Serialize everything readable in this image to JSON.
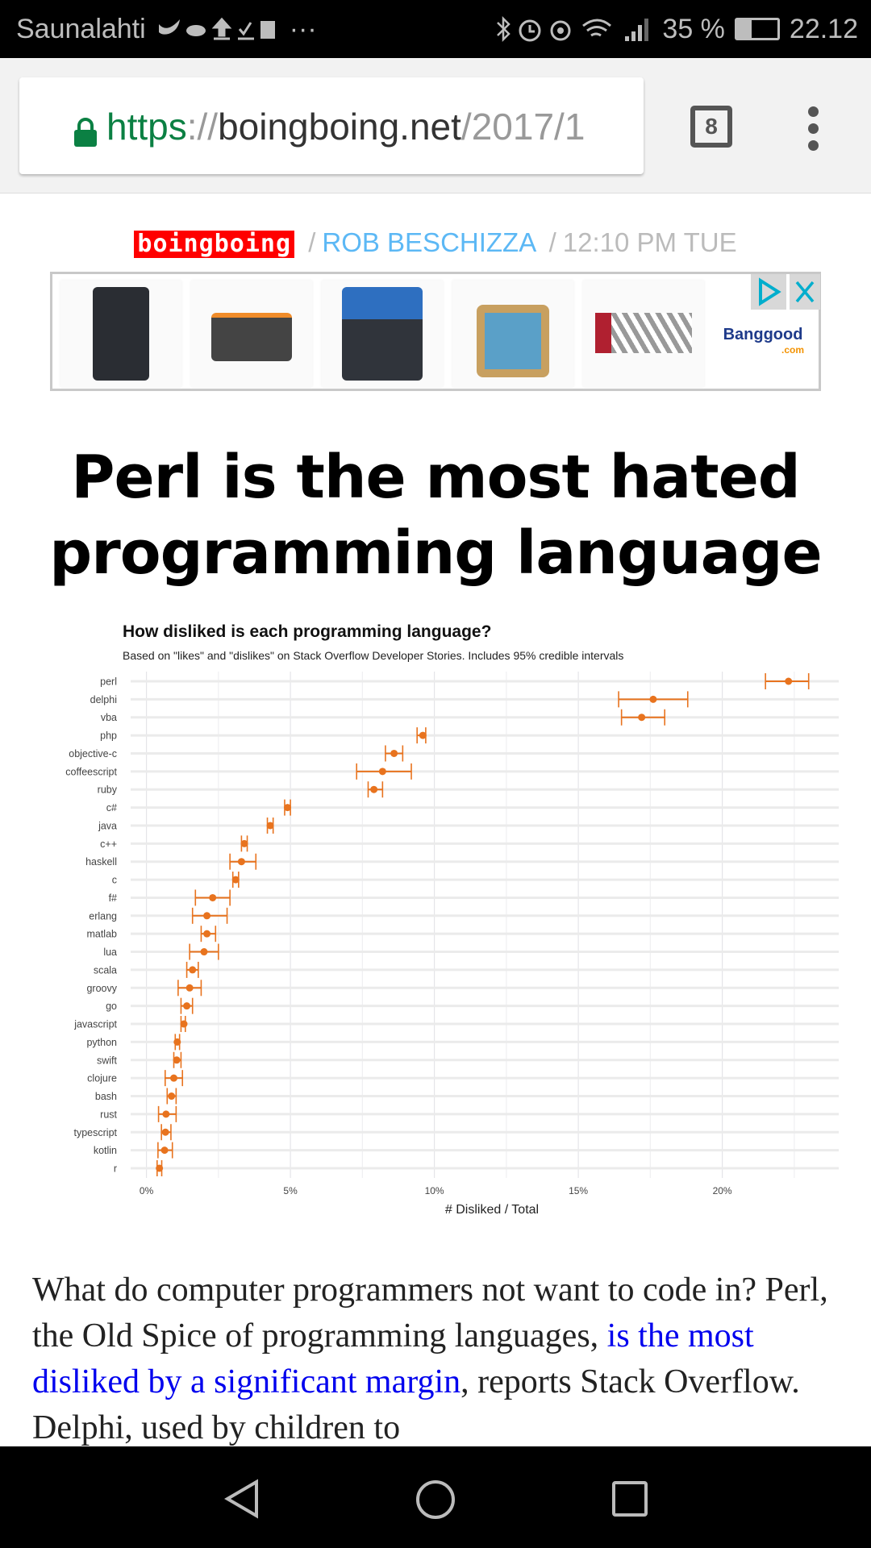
{
  "status_bar": {
    "carrier": "Saunalahti",
    "battery": "35 %",
    "time": "22.12",
    "more": "···"
  },
  "browser": {
    "url_scheme": "https",
    "url_sep": "://",
    "url_host": "boingboing.net",
    "url_path": "/2017/1",
    "tab_count": "8"
  },
  "byline": {
    "logo": "boingboing",
    "sep": "/",
    "author": "ROB BESCHIZZA",
    "time": "12:10 PM TUE"
  },
  "ad": {
    "brand": "Banggood",
    "brand_suffix": ".com"
  },
  "article": {
    "headline_1": "Perl is the most hated",
    "headline_2": "programming language",
    "p_before": "What do computer programmers not want to code in? Perl, the Old Spice of programming languages, ",
    "p_link": "is the most disliked by a significant margin",
    "p_after": ", reports Stack Overflow. Delphi, used by children to"
  },
  "chart_data": {
    "type": "scatter",
    "title": "How disliked is each programming language?",
    "subtitle": "Based on \"likes\" and \"dislikes\" on Stack Overflow Developer Stories. Includes 95% credible intervals",
    "xlabel": "# Disliked / Total",
    "ylabel": "",
    "xlim": [
      0,
      24.2
    ],
    "xticks": [
      0,
      5,
      10,
      15,
      20
    ],
    "xtick_labels": [
      "0%",
      "5%",
      "10%",
      "15%",
      "20%"
    ],
    "grid": true,
    "color": "#e8731e",
    "categories": [
      "perl",
      "delphi",
      "vba",
      "php",
      "objective-c",
      "coffeescript",
      "ruby",
      "c#",
      "java",
      "c++",
      "haskell",
      "c",
      "f#",
      "erlang",
      "matlab",
      "lua",
      "scala",
      "groovy",
      "go",
      "javascript",
      "python",
      "swift",
      "clojure",
      "bash",
      "rust",
      "typescript",
      "kotlin",
      "r"
    ],
    "values": [
      22.3,
      17.6,
      17.2,
      9.6,
      8.6,
      8.2,
      7.9,
      4.9,
      4.3,
      3.4,
      3.3,
      3.1,
      2.3,
      2.1,
      2.1,
      2.0,
      1.6,
      1.5,
      1.4,
      1.3,
      1.07,
      1.05,
      0.95,
      0.87,
      0.68,
      0.66,
      0.63,
      0.45
    ],
    "lower": [
      21.5,
      16.4,
      16.5,
      9.4,
      8.3,
      7.3,
      7.7,
      4.8,
      4.2,
      3.3,
      2.9,
      3.0,
      1.7,
      1.6,
      1.9,
      1.5,
      1.4,
      1.1,
      1.2,
      1.2,
      1.0,
      0.95,
      0.65,
      0.72,
      0.42,
      0.52,
      0.4,
      0.37
    ],
    "upper": [
      23.0,
      18.8,
      18.0,
      9.7,
      8.9,
      9.2,
      8.2,
      5.0,
      4.4,
      3.5,
      3.8,
      3.2,
      2.9,
      2.8,
      2.4,
      2.5,
      1.8,
      1.9,
      1.6,
      1.35,
      1.15,
      1.2,
      1.25,
      1.03,
      1.03,
      0.85,
      0.9,
      0.53
    ]
  }
}
